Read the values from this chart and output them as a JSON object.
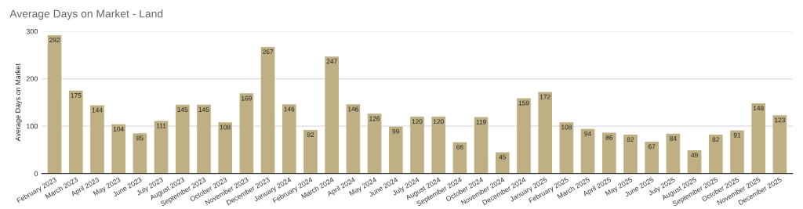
{
  "chart_data": {
    "type": "bar",
    "title": "Average Days on Market - Land",
    "ylabel": "Average Days on Market",
    "categories": [
      "February 2023",
      "March 2023",
      "April 2023",
      "May 2023",
      "June 2023",
      "July 2023",
      "August 2023",
      "September 2023",
      "October 2023",
      "November 2023",
      "December 2023",
      "January 2024",
      "February 2024",
      "March 2024",
      "April 2024",
      "May 2024",
      "June 2024",
      "July 2024",
      "August 2024",
      "September 2024",
      "October 2024",
      "November 2024",
      "December 2024",
      "January 2025",
      "February 2025",
      "March 2025",
      "April 2025",
      "May 2025",
      "June 2025",
      "July 2025",
      "August 2025",
      "September 2025",
      "October 2025",
      "November 2025",
      "December 2025"
    ],
    "values": [
      292,
      175,
      144,
      104,
      85,
      111,
      145,
      145,
      108,
      169,
      267,
      146,
      92,
      247,
      146,
      126,
      99,
      120,
      120,
      66,
      119,
      45,
      159,
      172,
      108,
      94,
      86,
      82,
      67,
      84,
      49,
      82,
      91,
      148,
      123
    ],
    "color": "#bfb083",
    "ylim": [
      0,
      300
    ],
    "yticks": [
      0,
      100,
      200,
      300
    ],
    "grid": "y",
    "data_labels": true
  }
}
